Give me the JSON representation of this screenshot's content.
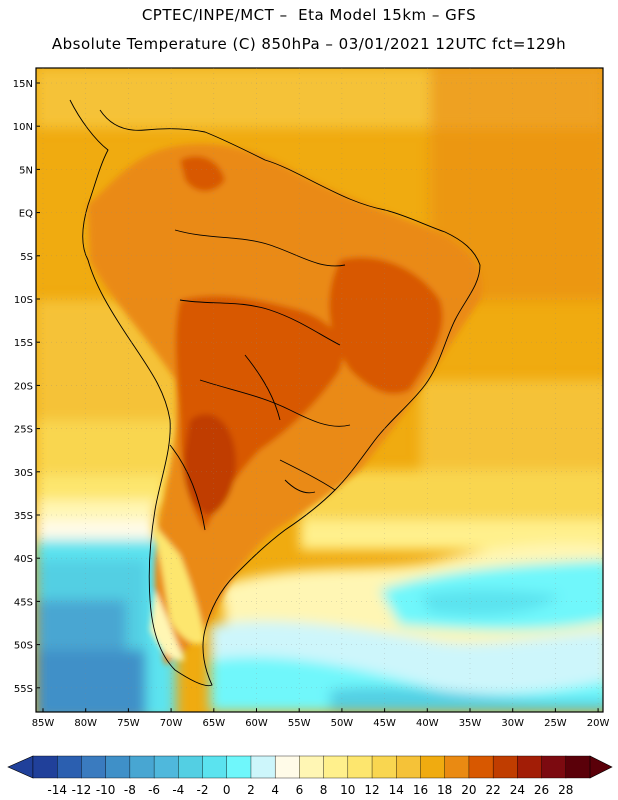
{
  "header": {
    "line1": "CPTEC/INPE/MCT –  Eta Model 15km – GFS",
    "line2": "Absolute Temperature (C) 850hPa – 03/01/2021 12UTC fct=129h"
  },
  "map": {
    "lat_labels": [
      "15N",
      "10N",
      "5N",
      "EQ",
      "5S",
      "10S",
      "15S",
      "20S",
      "25S",
      "30S",
      "35S",
      "40S",
      "45S",
      "50S",
      "55S"
    ],
    "lon_labels": [
      "85W",
      "80W",
      "75W",
      "70W",
      "65W",
      "60W",
      "55W",
      "50W",
      "45W",
      "40W",
      "35W",
      "30W",
      "25W",
      "20W"
    ]
  },
  "colorbar": {
    "labels": [
      "-14",
      "-12",
      "-10",
      "-8",
      "-6",
      "-4",
      "-2",
      "0",
      "2",
      "4",
      "6",
      "8",
      "10",
      "12",
      "14",
      "16",
      "18",
      "20",
      "22",
      "24",
      "26",
      "28"
    ],
    "colors": [
      "#20409a",
      "#2b5fb0",
      "#3a7bbf",
      "#3f90c8",
      "#48a6d2",
      "#4fb8dc",
      "#53cfe3",
      "#5be3ef",
      "#6ff7fb",
      "#cdf6fb",
      "#fffbe8",
      "#fff6b4",
      "#fff08c",
      "#fde66e",
      "#f9d650",
      "#f5c238",
      "#f0ab10",
      "#ea8a12",
      "#d85800",
      "#c03d00",
      "#a21d06",
      "#7c0a10",
      "#5a0009"
    ]
  },
  "styles": {
    "land_outline": "#000000",
    "frame": "#000000"
  }
}
